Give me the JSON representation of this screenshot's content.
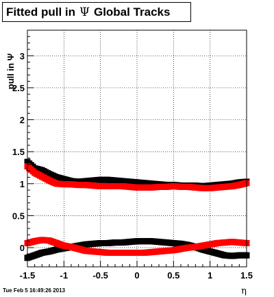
{
  "title": {
    "prefix": "Fitted pull in",
    "symbol": "Ψ",
    "suffix": "Global Tracks"
  },
  "footer": {
    "timestamp": "Tue Feb  5 16:49:26 2013"
  },
  "chart_data": {
    "type": "scatter",
    "xlabel": "η",
    "ylabel": "pull in Ψ",
    "xlim": [
      -1.5,
      1.5
    ],
    "ylim": [
      -0.3,
      3.4
    ],
    "xticks": [
      -1.5,
      -1,
      -0.5,
      0,
      0.5,
      1,
      1.5
    ],
    "xtick_labels": [
      "-1.5",
      "-1",
      "-0.5",
      "0",
      "0.5",
      "1",
      "1.5"
    ],
    "yticks": [
      0,
      0.5,
      1,
      1.5,
      2,
      2.5,
      3
    ],
    "ytick_labels": [
      "0",
      "0.5",
      "1",
      "1.5",
      "2",
      "2.5",
      "3"
    ],
    "grid": true,
    "series": [
      {
        "color": "#000000",
        "points": [
          [
            -1.5,
            1.34
          ],
          [
            -1.4,
            1.24
          ],
          [
            -1.3,
            1.21
          ],
          [
            -1.2,
            1.15
          ],
          [
            -1.1,
            1.1
          ],
          [
            -1.0,
            1.07
          ],
          [
            -0.9,
            1.04
          ],
          [
            -0.8,
            1.03
          ],
          [
            -0.7,
            1.04
          ],
          [
            -0.6,
            1.05
          ],
          [
            -0.5,
            1.06
          ],
          [
            -0.4,
            1.06
          ],
          [
            -0.3,
            1.05
          ],
          [
            -0.2,
            1.04
          ],
          [
            -0.1,
            1.03
          ],
          [
            0.0,
            1.02
          ],
          [
            0.1,
            1.01
          ],
          [
            0.2,
            1.0
          ],
          [
            0.3,
            0.99
          ],
          [
            0.4,
            0.98
          ],
          [
            0.5,
            0.98
          ],
          [
            0.6,
            0.97
          ],
          [
            0.7,
            0.97
          ],
          [
            0.8,
            0.97
          ],
          [
            0.9,
            0.96
          ],
          [
            1.0,
            0.97
          ],
          [
            1.1,
            0.98
          ],
          [
            1.2,
            0.99
          ],
          [
            1.3,
            1.0
          ],
          [
            1.4,
            1.02
          ],
          [
            1.5,
            1.03
          ]
        ]
      },
      {
        "color": "#ff0000",
        "points": [
          [
            -1.5,
            1.27
          ],
          [
            -1.4,
            1.17
          ],
          [
            -1.3,
            1.11
          ],
          [
            -1.2,
            1.05
          ],
          [
            -1.1,
            1.0
          ],
          [
            -1.0,
            0.99
          ],
          [
            -0.9,
            0.99
          ],
          [
            -0.8,
            0.98
          ],
          [
            -0.7,
            0.98
          ],
          [
            -0.6,
            0.97
          ],
          [
            -0.5,
            0.96
          ],
          [
            -0.4,
            0.96
          ],
          [
            -0.3,
            0.96
          ],
          [
            -0.2,
            0.96
          ],
          [
            -0.1,
            0.95
          ],
          [
            0.0,
            0.94
          ],
          [
            0.1,
            0.94
          ],
          [
            0.2,
            0.94
          ],
          [
            0.3,
            0.95
          ],
          [
            0.4,
            0.95
          ],
          [
            0.5,
            0.96
          ],
          [
            0.6,
            0.95
          ],
          [
            0.7,
            0.95
          ],
          [
            0.8,
            0.94
          ],
          [
            0.9,
            0.93
          ],
          [
            1.0,
            0.93
          ],
          [
            1.1,
            0.94
          ],
          [
            1.2,
            0.95
          ],
          [
            1.3,
            0.96
          ],
          [
            1.4,
            0.98
          ],
          [
            1.5,
            1.01
          ]
        ]
      },
      {
        "color": "#000000",
        "points": [
          [
            -1.5,
            -0.16
          ],
          [
            -1.4,
            -0.12
          ],
          [
            -1.3,
            -0.08
          ],
          [
            -1.2,
            -0.06
          ],
          [
            -1.1,
            -0.03
          ],
          [
            -1.0,
            -0.01
          ],
          [
            -0.9,
            0.01
          ],
          [
            -0.8,
            0.03
          ],
          [
            -0.7,
            0.05
          ],
          [
            -0.6,
            0.06
          ],
          [
            -0.5,
            0.07
          ],
          [
            -0.4,
            0.07
          ],
          [
            -0.3,
            0.08
          ],
          [
            -0.2,
            0.08
          ],
          [
            -0.1,
            0.09
          ],
          [
            0.0,
            0.1
          ],
          [
            0.1,
            0.1
          ],
          [
            0.2,
            0.1
          ],
          [
            0.3,
            0.09
          ],
          [
            0.4,
            0.08
          ],
          [
            0.5,
            0.07
          ],
          [
            0.6,
            0.06
          ],
          [
            0.7,
            0.04
          ],
          [
            0.8,
            0.01
          ],
          [
            0.9,
            -0.03
          ],
          [
            1.0,
            -0.06
          ],
          [
            1.1,
            -0.09
          ],
          [
            1.2,
            -0.12
          ],
          [
            1.3,
            -0.13
          ],
          [
            1.4,
            -0.12
          ],
          [
            1.5,
            -0.12
          ]
        ]
      },
      {
        "color": "#ff0000",
        "points": [
          [
            -1.5,
            0.07
          ],
          [
            -1.4,
            0.1
          ],
          [
            -1.3,
            0.12
          ],
          [
            -1.2,
            0.11
          ],
          [
            -1.1,
            0.07
          ],
          [
            -1.0,
            0.03
          ],
          [
            -0.9,
            0.01
          ],
          [
            -0.8,
            -0.02
          ],
          [
            -0.7,
            -0.05
          ],
          [
            -0.6,
            -0.06
          ],
          [
            -0.5,
            -0.07
          ],
          [
            -0.4,
            -0.08
          ],
          [
            -0.3,
            -0.08
          ],
          [
            -0.2,
            -0.08
          ],
          [
            -0.1,
            -0.08
          ],
          [
            0.0,
            -0.08
          ],
          [
            0.1,
            -0.08
          ],
          [
            0.2,
            -0.07
          ],
          [
            0.3,
            -0.06
          ],
          [
            0.4,
            -0.05
          ],
          [
            0.5,
            -0.04
          ],
          [
            0.6,
            -0.02
          ],
          [
            0.7,
            0.0
          ],
          [
            0.8,
            0.01
          ],
          [
            0.9,
            0.03
          ],
          [
            1.0,
            0.05
          ],
          [
            1.1,
            0.07
          ],
          [
            1.2,
            0.08
          ],
          [
            1.3,
            0.09
          ],
          [
            1.4,
            0.08
          ],
          [
            1.5,
            0.07
          ]
        ]
      }
    ]
  }
}
